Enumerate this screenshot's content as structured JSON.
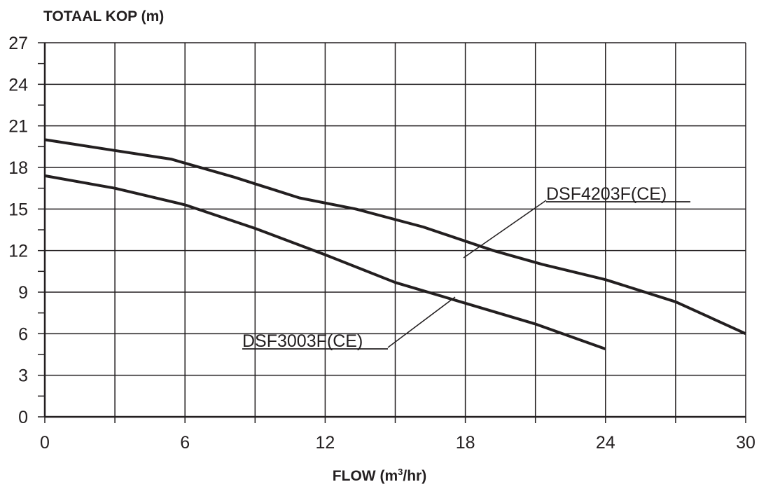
{
  "chart_data": {
    "type": "line",
    "title": "",
    "xlabel": "FLOW",
    "xlabel_unit_prefix": "(m",
    "xlabel_unit_exp": "3",
    "xlabel_unit_suffix": "/hr)",
    "ylabel": "TOTAAL KOP (m)",
    "xlim": [
      0,
      30
    ],
    "ylim": [
      0,
      27
    ],
    "xticks": [
      0,
      6,
      12,
      18,
      24,
      30
    ],
    "yticks": [
      0,
      3,
      6,
      9,
      12,
      15,
      18,
      21,
      24,
      27
    ],
    "grid": true,
    "series": [
      {
        "name": "DSF4203F(CE)",
        "x": [
          0,
          2.7,
          5.4,
          8.1,
          10.9,
          13.3,
          16.2,
          19.2,
          21.3,
          24.0,
          27.0,
          30.0
        ],
        "y": [
          20.0,
          19.3,
          18.6,
          17.3,
          15.8,
          15.0,
          13.7,
          12.0,
          11.0,
          9.9,
          8.3,
          6.0
        ]
      },
      {
        "name": "DSF3003F(CE)",
        "x": [
          0,
          3.0,
          6.0,
          9.0,
          12.0,
          15.0,
          18.0,
          21.0,
          24.0
        ],
        "y": [
          17.4,
          16.5,
          15.3,
          13.6,
          11.7,
          9.7,
          8.2,
          6.7,
          4.9
        ]
      }
    ]
  }
}
